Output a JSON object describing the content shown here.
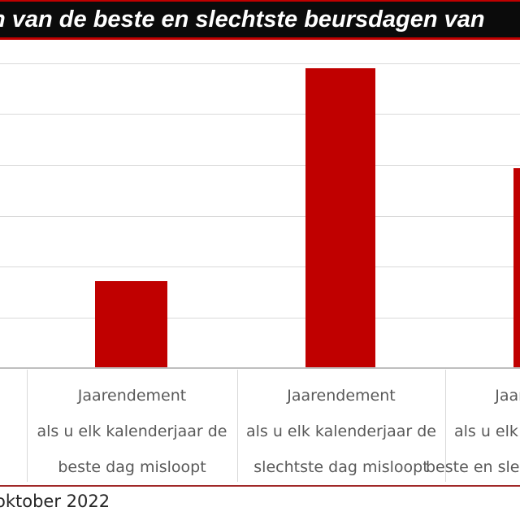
{
  "banner": {
    "title": "n van de beste en slechtste beursdagen van"
  },
  "footer": {
    "source": "oktober 2022"
  },
  "colors": {
    "bar": "#c00000",
    "banner_bg": "#0b0b0b",
    "banner_border": "#c00000",
    "grid": "#d9d9d9",
    "axis": "#bfbfbf",
    "label_text": "#595959",
    "footer_rule": "#a02828",
    "footer_text": "#262626",
    "title_text": "#ffffff"
  },
  "chart_data": {
    "type": "bar",
    "title": "n van de beste en slechtste beursdagen van",
    "categories": [
      "Jaarendement als u elk kalenderjaar de beste dag misloopt",
      "Jaarendement als u elk kalenderjaar de slechtste dag misloopt",
      "Jaarendement als u elk kalenderjaar de beste en slechtste dag misloopt"
    ],
    "category_lines": [
      [
        "Jaarendement",
        "als u elk kalenderjaar de",
        "beste dag misloopt"
      ],
      [
        "Jaarendement",
        "als u elk kalenderjaar de",
        "slechtste dag misloopt"
      ],
      [
        "Jaarendement",
        "als u elk kalenderjaar de",
        "beste en slechtste dag misloopt"
      ]
    ],
    "values": [
      1.71,
      5.91,
      3.93
    ],
    "value_scale": "relative units; one horizontal gridline interval = 1 (numeric y-axis tick labels are cropped outside the frame)",
    "ylim": [
      0,
      6
    ],
    "grid": true,
    "legend": false,
    "bar_color": "#c00000",
    "xlabel": "",
    "ylabel": "",
    "source_note": "oktober 2022"
  }
}
